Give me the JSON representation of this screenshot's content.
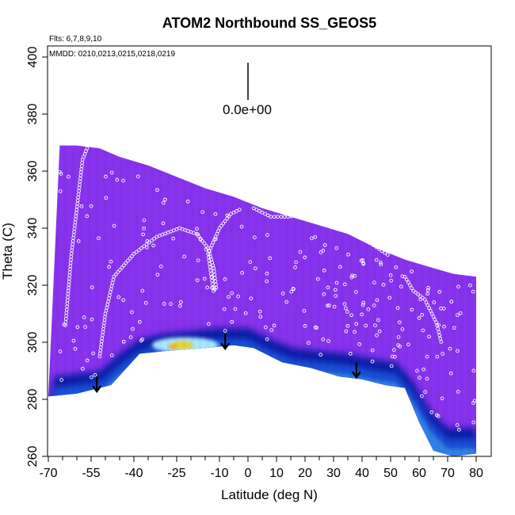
{
  "chart_data": {
    "type": "heatmap",
    "title": "ATOM2 Northbound SS_GEOS5",
    "flights_text": "Flts: 6,7,8,9,10",
    "dates_text": "MMDD: 0210,0213,0215,0218,0219",
    "xlabel": "Latitude (deg N)",
    "ylabel": "Theta (C)",
    "xlim": [
      -70,
      83
    ],
    "ylim": [
      260,
      400
    ],
    "x_ticks": [
      -70,
      -55,
      -40,
      -25,
      -10,
      0,
      10,
      20,
      30,
      40,
      50,
      60,
      70,
      80
    ],
    "x_minor_ticks": [
      -65,
      -60,
      -50,
      -45,
      -35,
      -30,
      -20,
      -15,
      -5,
      5,
      15,
      25,
      35,
      45,
      55,
      65,
      75
    ],
    "y_ticks": [
      260,
      280,
      300,
      320,
      340,
      360,
      380,
      400
    ],
    "scale_label": "0.0e+00",
    "colors": {
      "background_field": "#8833ee",
      "band_dark": "#0a1ea8",
      "band_mid": "#1e5ae0",
      "band_light": "#4aa8f0",
      "band_cyan": "#a8e8ff",
      "peak_yellow": "#f0d020",
      "peak_orange": "#f5a020",
      "arrow": "#000000",
      "points": "#ffffff"
    },
    "upper_boundary": [
      [
        -66,
        369
      ],
      [
        -60,
        369
      ],
      [
        -52,
        368
      ],
      [
        -45,
        365
      ],
      [
        -35,
        362
      ],
      [
        -25,
        358
      ],
      [
        -15,
        354
      ],
      [
        -5,
        351
      ],
      [
        5,
        347
      ],
      [
        15,
        344
      ],
      [
        25,
        341
      ],
      [
        35,
        338
      ],
      [
        45,
        333
      ],
      [
        55,
        329
      ],
      [
        65,
        326
      ],
      [
        72,
        324
      ],
      [
        80,
        323
      ]
    ],
    "lower_boundary": [
      [
        -70,
        281
      ],
      [
        -60,
        282
      ],
      [
        -48,
        285
      ],
      [
        -38,
        296
      ],
      [
        -28,
        297
      ],
      [
        -15,
        298
      ],
      [
        -5,
        299
      ],
      [
        2,
        298
      ],
      [
        12,
        293
      ],
      [
        22,
        291
      ],
      [
        32,
        288
      ],
      [
        40,
        287
      ],
      [
        48,
        285
      ],
      [
        55,
        284
      ],
      [
        60,
        272
      ],
      [
        65,
        262
      ],
      [
        72,
        260
      ],
      [
        80,
        261
      ]
    ],
    "band": [
      [
        -68,
        288
      ],
      [
        -60,
        289
      ],
      [
        -52,
        290
      ],
      [
        -45,
        296
      ],
      [
        -38,
        301
      ],
      [
        -30,
        303
      ],
      [
        -20,
        304
      ],
      [
        -10,
        305
      ],
      [
        0,
        305
      ],
      [
        8,
        301
      ],
      [
        16,
        298
      ],
      [
        25,
        297
      ],
      [
        35,
        296
      ],
      [
        45,
        294
      ],
      [
        52,
        293
      ],
      [
        58,
        286
      ],
      [
        64,
        276
      ],
      [
        70,
        270
      ],
      [
        80,
        270
      ]
    ],
    "peak": {
      "x": -22,
      "y": 299
    },
    "vectors": [
      {
        "x": -53,
        "y": 288,
        "dx": 0,
        "dy": -5
      },
      {
        "x": -8,
        "y": 303,
        "dx": 0,
        "dy": -5
      },
      {
        "x": 38,
        "y": 293,
        "dx": 0,
        "dy": -5
      }
    ],
    "scale_vector": {
      "x": 0,
      "y": 398,
      "dy": -13
    },
    "flight_paths": [
      {
        "pts": [
          [
            -64,
            306
          ],
          [
            -62,
            330
          ],
          [
            -58,
            364
          ],
          [
            -56,
            369
          ]
        ]
      },
      {
        "pts": [
          [
            -52,
            295
          ],
          [
            -50,
            310
          ],
          [
            -47,
            323
          ],
          [
            -40,
            331
          ],
          [
            -32,
            337
          ],
          [
            -24,
            340
          ],
          [
            -18,
            338
          ],
          [
            -14,
            333
          ],
          [
            -12,
            326
          ],
          [
            -11,
            318
          ]
        ]
      },
      {
        "pts": [
          [
            -12,
            318
          ],
          [
            -13,
            324
          ],
          [
            -14,
            331
          ],
          [
            -10,
            340
          ],
          [
            -6,
            345
          ],
          [
            -2,
            347
          ]
        ]
      },
      {
        "pts": [
          [
            2,
            347
          ],
          [
            8,
            344
          ],
          [
            14,
            344
          ],
          [
            22,
            345
          ],
          [
            30,
            345
          ],
          [
            38,
            339
          ],
          [
            44,
            334
          ],
          [
            50,
            330
          ]
        ]
      },
      {
        "pts": [
          [
            55,
            323
          ],
          [
            58,
            318
          ],
          [
            62,
            315
          ],
          [
            66,
            307
          ],
          [
            68,
            299
          ]
        ]
      }
    ],
    "scatter_count": 240
  }
}
